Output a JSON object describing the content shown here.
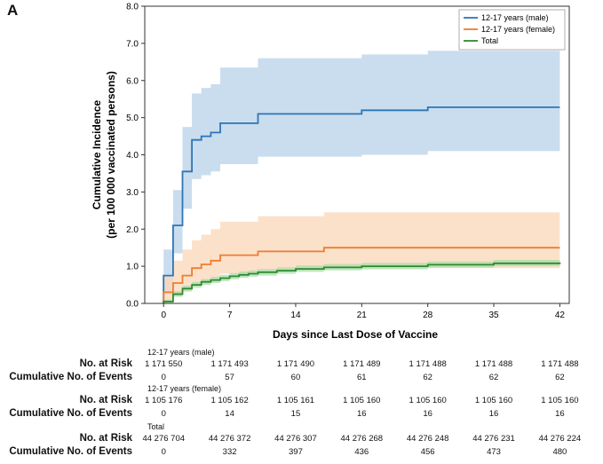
{
  "panel_label": "A",
  "chart_data": {
    "type": "line",
    "step": true,
    "xlabel": "Days since Last Dose of Vaccine",
    "ylabel_line1": "Cumulative Incidence",
    "ylabel_line2": "(per 100 000 vaccinated persons)",
    "xlim": [
      -2,
      43
    ],
    "ylim": [
      0,
      8
    ],
    "xticks": [
      0,
      7,
      14,
      21,
      28,
      35,
      42
    ],
    "yticks": [
      "0.0",
      "1.0",
      "2.0",
      "3.0",
      "4.0",
      "5.0",
      "6.0",
      "7.0",
      "8.0"
    ],
    "legend_position": "top-right",
    "series": [
      {
        "name": "12-17 years (male)",
        "color": "#2e75b6",
        "band_color": "#b7d1e8",
        "x": [
          0,
          1,
          2,
          3,
          4,
          5,
          6,
          10,
          21,
          28,
          42
        ],
        "y": [
          0.75,
          2.1,
          3.55,
          4.4,
          4.5,
          4.6,
          4.85,
          5.1,
          5.2,
          5.28,
          5.28
        ],
        "lower": [
          0.25,
          1.35,
          2.55,
          3.35,
          3.45,
          3.55,
          3.75,
          3.95,
          4.0,
          4.1,
          4.1
        ],
        "upper": [
          1.45,
          3.05,
          4.75,
          5.65,
          5.8,
          5.9,
          6.35,
          6.6,
          6.7,
          6.8,
          6.8
        ]
      },
      {
        "name": "12-17 years (female)",
        "color": "#ed7d31",
        "band_color": "#fbd7b8",
        "x": [
          0,
          1,
          2,
          3,
          4,
          5,
          6,
          10,
          17,
          42
        ],
        "y": [
          0.3,
          0.55,
          0.75,
          0.95,
          1.05,
          1.15,
          1.3,
          1.4,
          1.5,
          1.5
        ],
        "lower": [
          0.05,
          0.2,
          0.35,
          0.5,
          0.6,
          0.7,
          0.8,
          0.9,
          0.95,
          0.95
        ],
        "upper": [
          0.75,
          1.15,
          1.45,
          1.7,
          1.85,
          2.0,
          2.2,
          2.35,
          2.45,
          2.45
        ]
      },
      {
        "name": "Total",
        "color": "#2e8b2e",
        "band_color": "#a9dca9",
        "x": [
          0,
          1,
          2,
          3,
          4,
          5,
          6,
          7,
          8,
          9,
          10,
          12,
          14,
          17,
          21,
          28,
          35,
          42
        ],
        "y": [
          0.05,
          0.25,
          0.4,
          0.5,
          0.58,
          0.63,
          0.68,
          0.73,
          0.77,
          0.8,
          0.84,
          0.88,
          0.93,
          0.97,
          1.0,
          1.04,
          1.08,
          1.1
        ],
        "lower": [
          0.01,
          0.18,
          0.32,
          0.42,
          0.5,
          0.55,
          0.6,
          0.65,
          0.69,
          0.72,
          0.75,
          0.8,
          0.85,
          0.89,
          0.92,
          0.96,
          1.0,
          1.02
        ],
        "upper": [
          0.1,
          0.33,
          0.48,
          0.58,
          0.66,
          0.72,
          0.77,
          0.82,
          0.86,
          0.89,
          0.93,
          0.97,
          1.02,
          1.06,
          1.09,
          1.13,
          1.17,
          1.19
        ]
      }
    ]
  },
  "risk_table": {
    "days": [
      0,
      7,
      14,
      21,
      28,
      35,
      42
    ],
    "row_label_risk": "No. at Risk",
    "row_label_events": "Cumulative No. of Events",
    "groups": [
      {
        "title": "12-17 years (male)",
        "at_risk": [
          "1 171 550",
          "1 171 493",
          "1 171 490",
          "1 171 489",
          "1 171 488",
          "1 171 488",
          "1 171 488"
        ],
        "events": [
          "0",
          "57",
          "60",
          "61",
          "62",
          "62",
          "62"
        ]
      },
      {
        "title": "12-17 years (female)",
        "at_risk": [
          "1 105 176",
          "1 105 162",
          "1 105 161",
          "1 105 160",
          "1 105 160",
          "1 105 160",
          "1 105 160"
        ],
        "events": [
          "0",
          "14",
          "15",
          "16",
          "16",
          "16",
          "16"
        ]
      },
      {
        "title": "Total",
        "at_risk": [
          "44 276 704",
          "44 276 372",
          "44 276 307",
          "44 276 268",
          "44 276 248",
          "44 276 231",
          "44 276 224"
        ],
        "events": [
          "0",
          "332",
          "397",
          "436",
          "456",
          "473",
          "480"
        ]
      }
    ]
  }
}
